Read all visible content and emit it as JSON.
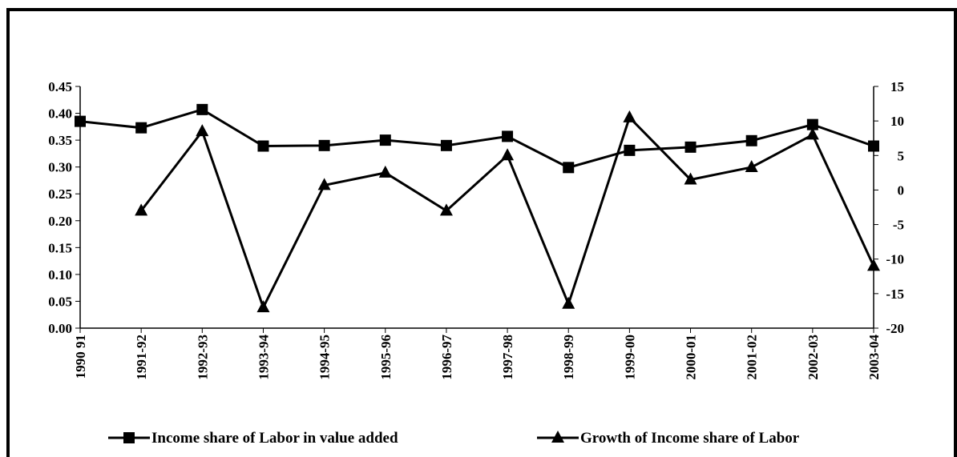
{
  "chart_data": {
    "type": "line",
    "categories": [
      "1990 91",
      "1991-92",
      "1992-93",
      "1993-94",
      "1994-95",
      "1995-96",
      "1996-97",
      "1997-98",
      "1998-99",
      "1999-00",
      "2000-01",
      "2001-02",
      "2002-03",
      "2003-04"
    ],
    "series": [
      {
        "name": "Income share of Labor in value added",
        "color": "#000000",
        "marker": "square",
        "values": [
          0.385,
          0.373,
          0.407,
          0.339,
          0.34,
          0.35,
          0.34,
          0.357,
          0.299,
          0.331,
          0.337,
          0.349,
          0.379,
          0.339
        ]
      },
      {
        "name": "Growth of Income share of Labor",
        "color": "#000000",
        "marker": "triangle",
        "axis": "y2",
        "values": [
          null,
          -3,
          8.5,
          -17,
          0.7,
          2.5,
          -3,
          5,
          -16.5,
          10.5,
          1.5,
          3.3,
          8,
          -11
        ]
      }
    ],
    "ylim": [
      0,
      0.45
    ],
    "yticks": [
      {
        "value": 0,
        "label": "0.00"
      },
      {
        "value": 0.05,
        "label": "0.05"
      },
      {
        "value": 0.1,
        "label": "0.10"
      },
      {
        "value": 0.15,
        "label": "0.15"
      },
      {
        "value": 0.2,
        "label": "0.20"
      },
      {
        "value": 0.25,
        "label": "0.25"
      },
      {
        "value": 0.3,
        "label": "0.30"
      },
      {
        "value": 0.35,
        "label": "0.35"
      },
      {
        "value": 0.4,
        "label": "0.40"
      },
      {
        "value": 0.45,
        "label": "0.45"
      }
    ],
    "y2lim": [
      -20,
      15
    ],
    "y2ticks": [
      -20,
      -15,
      -10,
      -5,
      0,
      5,
      10,
      15
    ],
    "legend": "bottom"
  }
}
